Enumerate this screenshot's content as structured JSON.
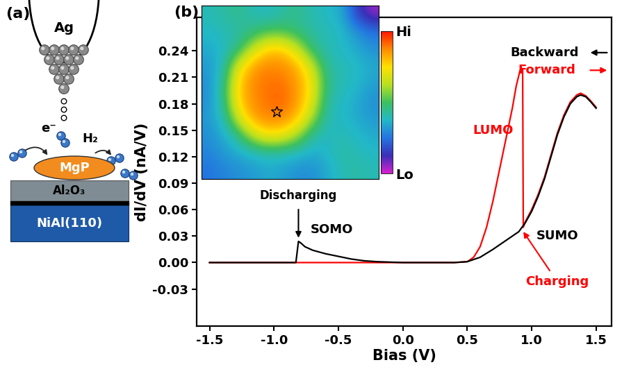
{
  "panel_a": {
    "label": "(a)",
    "tip": "Ag",
    "electron": "e⁻",
    "gas": "H₂",
    "molecule": "MgP",
    "layers": [
      "Al₂O₃",
      "NiAl(110)"
    ]
  },
  "chart_data": {
    "type": "line",
    "panel_label": "(b)",
    "xlabel": "Bias (V)",
    "ylabel": "dI/dV (nA/V)",
    "xlim": [
      -1.6,
      1.62
    ],
    "ylim": [
      -0.072,
      0.278
    ],
    "xticks": [
      -1.5,
      -1.0,
      -0.5,
      0.0,
      0.5,
      1.0,
      1.5
    ],
    "yticks": [
      {
        "value": -0.03,
        "label": "-0.03"
      },
      {
        "value": 0.0,
        "label": "0.00"
      },
      {
        "value": 0.03,
        "label": "0.03"
      },
      {
        "value": 0.06,
        "label": "0.06"
      },
      {
        "value": 0.09,
        "label": "0.09"
      },
      {
        "value": 0.12,
        "label": "0.12"
      },
      {
        "value": 0.15,
        "label": "0.15"
      },
      {
        "value": 0.18,
        "label": "0.18"
      },
      {
        "value": 0.21,
        "label": "0.21"
      },
      {
        "value": 0.24,
        "label": "0.24"
      }
    ],
    "series": [
      {
        "name": "Backward",
        "color": "#000000",
        "x": [
          -1.5,
          -1.2,
          -1.0,
          -0.9,
          -0.83,
          -0.81,
          -0.79,
          -0.76,
          -0.7,
          -0.6,
          -0.5,
          -0.4,
          -0.3,
          -0.2,
          0.0,
          0.2,
          0.4,
          0.5,
          0.6,
          0.7,
          0.8,
          0.9,
          0.95,
          1.0,
          1.05,
          1.1,
          1.15,
          1.2,
          1.25,
          1.3,
          1.35,
          1.38,
          1.42,
          1.46,
          1.5
        ],
        "values": [
          0,
          0,
          0,
          0,
          0,
          0.024,
          0.022,
          0.018,
          0.014,
          0.01,
          0.007,
          0.004,
          0.002,
          0.001,
          0,
          0,
          0,
          0.001,
          0.006,
          0.015,
          0.025,
          0.035,
          0.045,
          0.058,
          0.075,
          0.095,
          0.12,
          0.145,
          0.165,
          0.18,
          0.188,
          0.19,
          0.188,
          0.182,
          0.175
        ]
      },
      {
        "name": "Forward",
        "color": "#ff0000",
        "x": [
          -1.5,
          -1.0,
          -0.5,
          0.0,
          0.4,
          0.5,
          0.55,
          0.6,
          0.65,
          0.7,
          0.75,
          0.8,
          0.85,
          0.88,
          0.91,
          0.93,
          0.935,
          0.95,
          1.0,
          1.05,
          1.1,
          1.15,
          1.2,
          1.25,
          1.3,
          1.35,
          1.38,
          1.42,
          1.46,
          1.5
        ],
        "values": [
          0,
          0,
          0,
          0,
          0,
          0.001,
          0.006,
          0.018,
          0.04,
          0.07,
          0.105,
          0.14,
          0.175,
          0.2,
          0.218,
          0.22,
          0.04,
          0.046,
          0.06,
          0.077,
          0.097,
          0.122,
          0.147,
          0.167,
          0.182,
          0.19,
          0.192,
          0.189,
          0.183,
          0.176
        ]
      }
    ],
    "annotations": [
      {
        "text": "LUMO",
        "color": "#ff0000"
      },
      {
        "text": "SOMO",
        "color": "#000000"
      },
      {
        "text": "SUMO",
        "color": "#000000"
      },
      {
        "text": "Discharging",
        "color": "#000000"
      },
      {
        "text": "Charging",
        "color": "#ff0000"
      }
    ],
    "inset": {
      "type": "heatmap",
      "cells": [
        [
          0.4,
          0.42,
          0.45,
          0.4,
          0.38,
          0.42,
          0.45,
          0.4,
          0.38,
          0.35,
          0.15,
          0.05
        ],
        [
          0.38,
          0.4,
          0.42,
          0.45,
          0.5,
          0.5,
          0.45,
          0.42,
          0.4,
          0.38,
          0.3,
          0.25
        ],
        [
          0.35,
          0.38,
          0.45,
          0.65,
          0.78,
          0.78,
          0.65,
          0.45,
          0.4,
          0.38,
          0.35,
          0.3
        ],
        [
          0.32,
          0.4,
          0.7,
          0.85,
          0.88,
          0.87,
          0.82,
          0.65,
          0.42,
          0.4,
          0.38,
          0.35
        ],
        [
          0.3,
          0.45,
          0.78,
          0.88,
          0.9,
          0.9,
          0.85,
          0.72,
          0.45,
          0.4,
          0.38,
          0.33
        ],
        [
          0.3,
          0.45,
          0.78,
          0.87,
          0.9,
          0.92,
          0.85,
          0.7,
          0.42,
          0.38,
          0.35,
          0.3
        ],
        [
          0.32,
          0.4,
          0.68,
          0.85,
          0.88,
          0.88,
          0.8,
          0.6,
          0.4,
          0.38,
          0.35,
          0.32
        ],
        [
          0.3,
          0.35,
          0.45,
          0.65,
          0.75,
          0.72,
          0.6,
          0.42,
          0.38,
          0.4,
          0.38,
          0.35
        ],
        [
          0.28,
          0.32,
          0.35,
          0.38,
          0.4,
          0.4,
          0.38,
          0.35,
          0.38,
          0.42,
          0.4,
          0.38
        ],
        [
          0.25,
          0.28,
          0.3,
          0.32,
          0.35,
          0.33,
          0.3,
          0.3,
          0.35,
          0.4,
          0.42,
          0.4
        ]
      ],
      "range": [
        0,
        1
      ],
      "ticks": [
        {
          "value": 0,
          "label": "Lo"
        },
        {
          "value": 1,
          "label": "Hi"
        }
      ],
      "marker_at": [
        4.6,
        5.6
      ]
    }
  }
}
